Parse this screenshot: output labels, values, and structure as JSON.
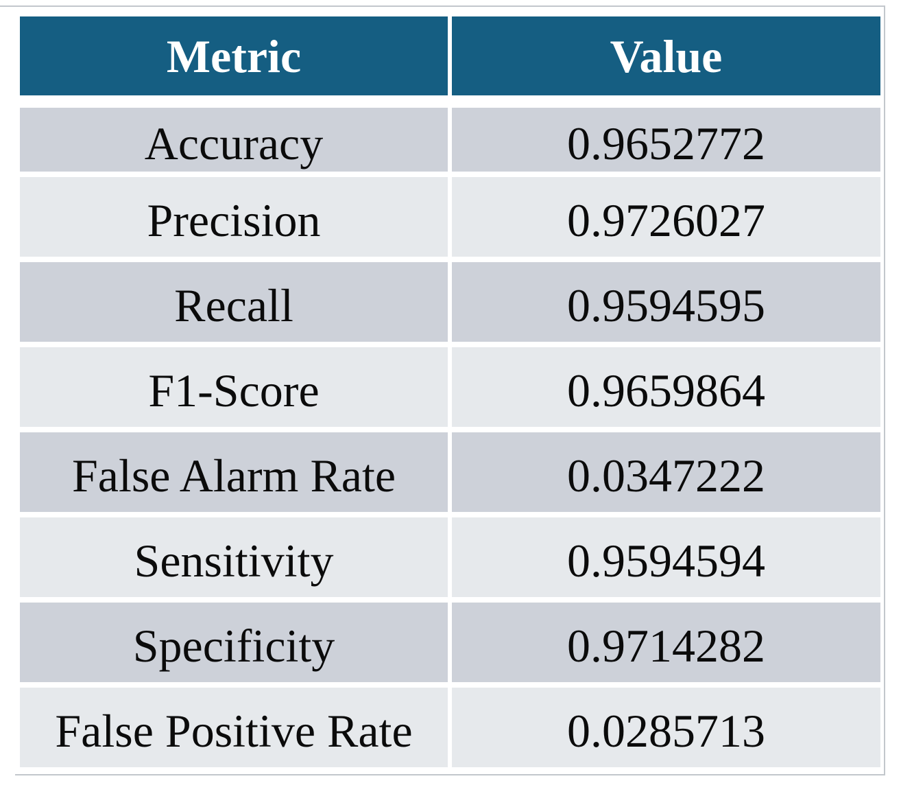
{
  "table": {
    "header": {
      "metric": "Metric",
      "value": "Value"
    },
    "rows": [
      {
        "metric": "Accuracy",
        "value": "0.9652772"
      },
      {
        "metric": "Precision",
        "value": "0.9726027"
      },
      {
        "metric": "Recall",
        "value": "0.9594595"
      },
      {
        "metric": "F1-Score",
        "value": "0.9659864"
      },
      {
        "metric": "False Alarm Rate",
        "value": "0.0347222"
      },
      {
        "metric": "Sensitivity",
        "value": "0.9594594"
      },
      {
        "metric": "Specificity",
        "value": "0.9714282"
      },
      {
        "metric": "False Positive Rate",
        "value": "0.0285713"
      }
    ]
  },
  "colors": {
    "header_bg": "#155e82",
    "header_text": "#ffffff",
    "row_dark": "#cdd1d9",
    "row_light": "#e6e9ec",
    "body_text": "#0b0b0b",
    "border_line": "#c2c7cc",
    "background": "#ffffff"
  },
  "chart_data": {
    "type": "table",
    "columns": [
      "Metric",
      "Value"
    ],
    "rows": [
      [
        "Accuracy",
        0.9652772
      ],
      [
        "Precision",
        0.9726027
      ],
      [
        "Recall",
        0.9594595
      ],
      [
        "F1-Score",
        0.9659864
      ],
      [
        "False Alarm Rate",
        0.0347222
      ],
      [
        "Sensitivity",
        0.9594594
      ],
      [
        "Specificity",
        0.9714282
      ],
      [
        "False Positive Rate",
        0.0285713
      ]
    ]
  }
}
